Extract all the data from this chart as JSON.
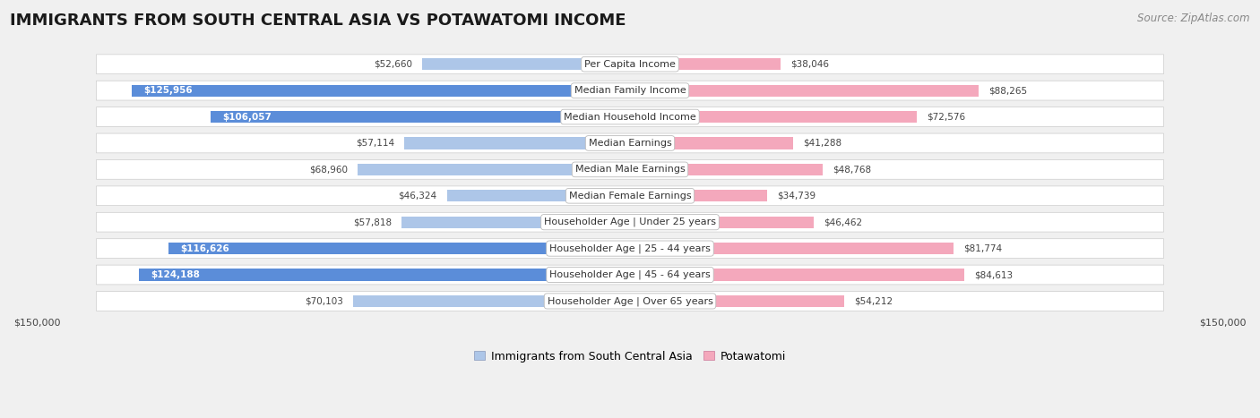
{
  "title": "IMMIGRANTS FROM SOUTH CENTRAL ASIA VS POTAWATOMI INCOME",
  "source": "Source: ZipAtlas.com",
  "categories": [
    "Per Capita Income",
    "Median Family Income",
    "Median Household Income",
    "Median Earnings",
    "Median Male Earnings",
    "Median Female Earnings",
    "Householder Age | Under 25 years",
    "Householder Age | 25 - 44 years",
    "Householder Age | 45 - 64 years",
    "Householder Age | Over 65 years"
  ],
  "left_values": [
    52660,
    125956,
    106057,
    57114,
    68960,
    46324,
    57818,
    116626,
    124188,
    70103
  ],
  "right_values": [
    38046,
    88265,
    72576,
    41288,
    48768,
    34739,
    46462,
    81774,
    84613,
    54212
  ],
  "left_color_light": "#adc6e8",
  "right_color_light": "#f4a8bc",
  "left_color_solid": "#5b8dd9",
  "right_color_solid": "#e8547a",
  "left_label": "Immigrants from South Central Asia",
  "right_label": "Potawatomi",
  "axis_max": 150000,
  "background_color": "#f0f0f0",
  "row_bg_color": "#ffffff",
  "row_alt_color": "#e8e8e8",
  "title_fontsize": 13,
  "source_fontsize": 8.5,
  "cat_fontsize": 8,
  "value_fontsize": 7.5,
  "legend_fontsize": 9,
  "solid_threshold": 100000
}
